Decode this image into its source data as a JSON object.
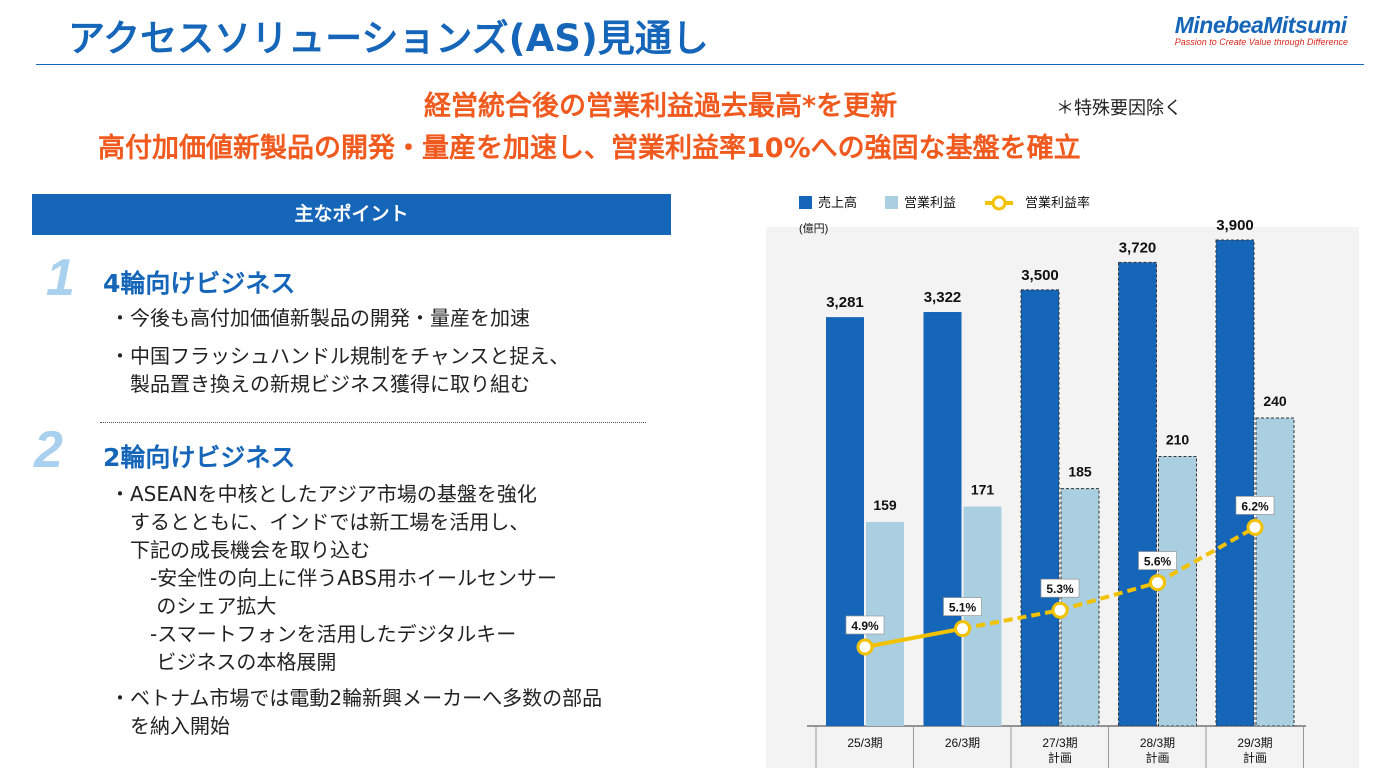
{
  "header": {
    "title": "アクセスソリューションズ(AS)見通し",
    "logo_name": "MinebeaMitsumi",
    "logo_tagline": "Passion to Create Value through Difference"
  },
  "headline": {
    "line1": "経営統合後の営業利益過去最高*を更新",
    "line1_note": "＊特殊要因除く",
    "line2": "高付加価値新製品の開発・量産を加速し、営業利益率10%への強固な基盤を確立"
  },
  "points": {
    "header": "主なポイント",
    "sections": [
      {
        "number": "1",
        "title": "4輪向けビジネス",
        "bullets": [
          "・今後も高付加価値新製品の開発・量産を加速",
          "・中国フラッシュハンドル規制をチャンスと捉え、",
          "　製品置き換えの新規ビジネス獲得に取り組む"
        ]
      },
      {
        "number": "2",
        "title": "2輪向けビジネス",
        "bullets": [
          "・ASEANを中核としたアジア市場の基盤を強化",
          "　するとともに、インドでは新工場を活用し、",
          "　下記の成長機会を取り込む",
          "　　-安全性の向上に伴うABS用ホイールセンサー",
          "　　 のシェア拡大",
          "　　-スマートフォンを活用したデジタルキー",
          "　　 ビジネスの本格展開",
          "・ベトナム市場では電動2輪新興メーカーへ多数の部品",
          "　を納入開始"
        ]
      }
    ]
  },
  "colors": {
    "sales": "#1565b8",
    "profit": "#a9cfe0",
    "margin": "#f2c200",
    "accent_orange": "#f05a1e",
    "chart_bg": "#f3f3f3"
  },
  "chart_data": {
    "type": "bar",
    "unit_label": "(億円)",
    "categories": [
      "25/3期",
      "26/3期",
      "27/3期\n計画",
      "28/3期\n計画",
      "29/3期\n計画"
    ],
    "planned": [
      false,
      false,
      true,
      true,
      true
    ],
    "series": [
      {
        "name": "売上高",
        "values": [
          3281,
          3322,
          3500,
          3720,
          3900
        ],
        "labels": [
          "3,281",
          "3,322",
          "3,500",
          "3,720",
          "3,900"
        ]
      },
      {
        "name": "営業利益",
        "values": [
          159,
          171,
          185,
          210,
          240
        ],
        "labels": [
          "159",
          "171",
          "185",
          "210",
          "240"
        ]
      },
      {
        "name": "営業利益率",
        "type": "line",
        "values": [
          4.9,
          5.1,
          5.3,
          5.6,
          6.2
        ],
        "labels": [
          "4.9%",
          "5.1%",
          "5.3%",
          "5.6%",
          "6.2%"
        ]
      }
    ],
    "legend_position": "top",
    "grid": false
  }
}
